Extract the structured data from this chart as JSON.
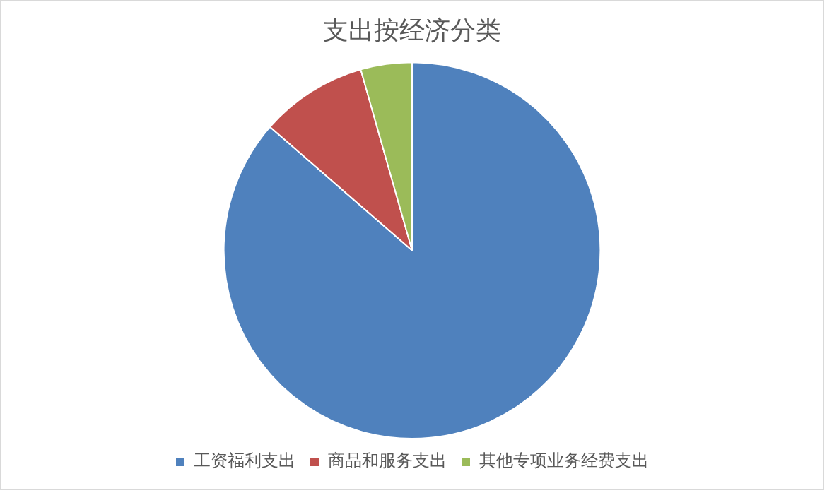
{
  "chart_data": {
    "type": "pie",
    "title": "支出按经济分类",
    "categories": [
      "工资福利支出",
      "商品和服务支出",
      "其他专项业务经费支出"
    ],
    "values": [
      86.4,
      9.2,
      4.4
    ],
    "colors": [
      "#4f81bd",
      "#c0504d",
      "#9bbb59"
    ],
    "legend": "bottom"
  }
}
